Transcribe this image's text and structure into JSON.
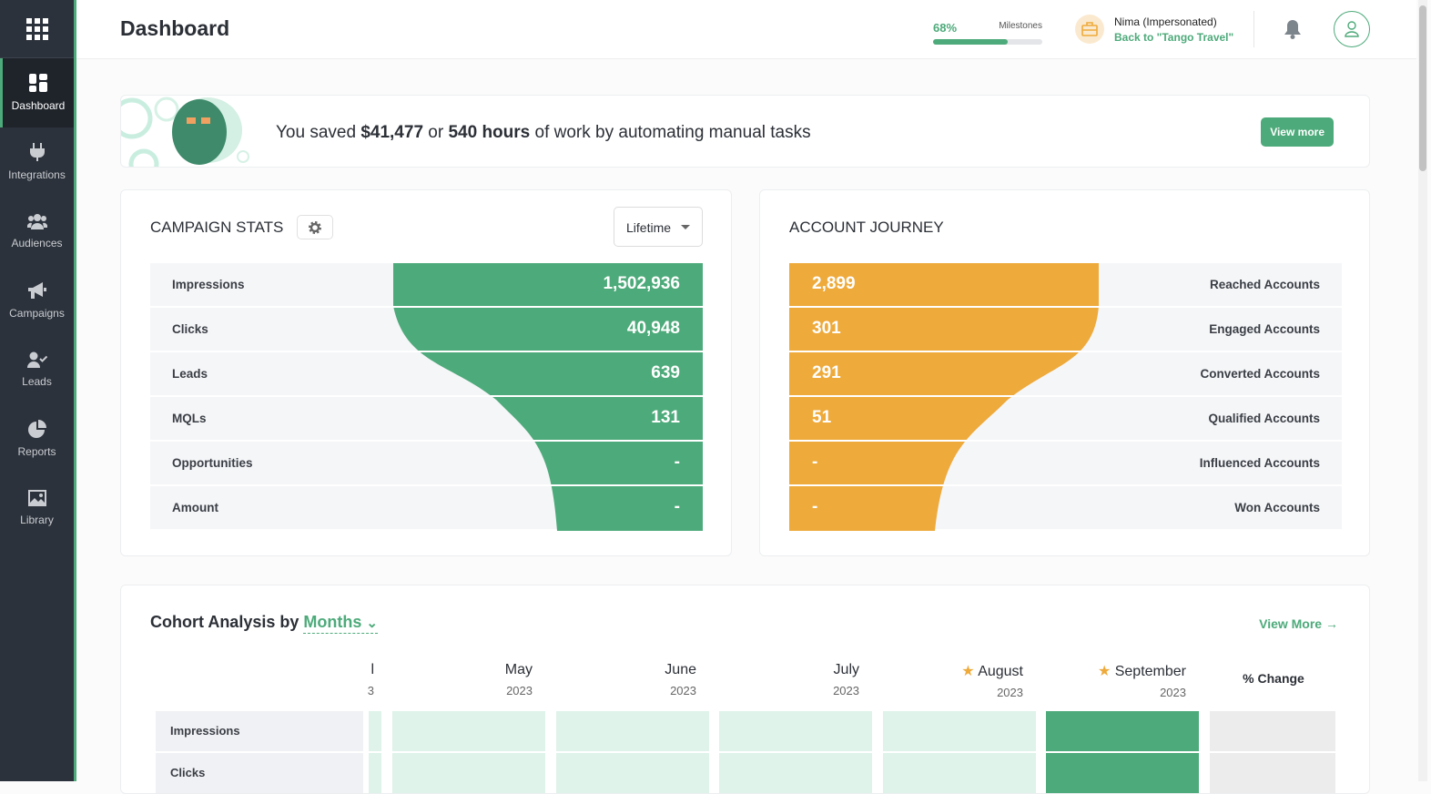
{
  "sidebar": {
    "items": [
      {
        "label": "Dashboard"
      },
      {
        "label": "Integrations"
      },
      {
        "label": "Audiences"
      },
      {
        "label": "Campaigns"
      },
      {
        "label": "Leads"
      },
      {
        "label": "Reports"
      },
      {
        "label": "Library"
      }
    ]
  },
  "header": {
    "title": "Dashboard",
    "milestone_pct": "68%",
    "milestone_value": 68,
    "milestone_label": "Milestones",
    "user": "Nima (Impersonated)",
    "back_link": "Back to \"Tango Travel\""
  },
  "banner": {
    "pre": "You saved ",
    "amount": "$41,477",
    "mid": " or ",
    "hours": "540 hours",
    "post": " of work by automating manual tasks",
    "button": "View more"
  },
  "campaign": {
    "title": "CAMPAIGN STATS",
    "period": "Lifetime",
    "rows": [
      {
        "label": "Impressions",
        "value": "1,502,936"
      },
      {
        "label": "Clicks",
        "value": "40,948"
      },
      {
        "label": "Leads",
        "value": "639"
      },
      {
        "label": "MQLs",
        "value": "131"
      },
      {
        "label": "Opportunities",
        "value": "-"
      },
      {
        "label": "Amount",
        "value": "-"
      }
    ]
  },
  "journey": {
    "title": "ACCOUNT JOURNEY",
    "rows": [
      {
        "label": "Reached Accounts",
        "value": "2,899"
      },
      {
        "label": "Engaged Accounts",
        "value": "301"
      },
      {
        "label": "Converted Accounts",
        "value": "291"
      },
      {
        "label": "Qualified Accounts",
        "value": "51"
      },
      {
        "label": "Influenced Accounts",
        "value": "-"
      },
      {
        "label": "Won Accounts",
        "value": "-"
      }
    ]
  },
  "cohort": {
    "title": "Cohort Analysis by ",
    "period": "Months",
    "view_more": "View More →",
    "partial_month": "l",
    "partial_year": "3",
    "months": [
      {
        "m": "May",
        "y": "2023"
      },
      {
        "m": "June",
        "y": "2023"
      },
      {
        "m": "July",
        "y": "2023"
      },
      {
        "m": "August",
        "y": "2023",
        "star": true
      },
      {
        "m": "September",
        "y": "2023",
        "star": true
      }
    ],
    "change": "% Change",
    "rows": [
      "Impressions",
      "Clicks"
    ]
  },
  "colors": {
    "green": "#4daa7a",
    "orange": "#eeaa3a"
  }
}
